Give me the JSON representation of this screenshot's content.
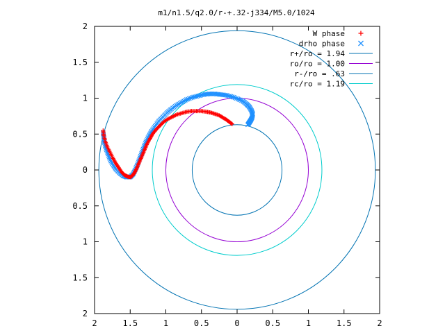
{
  "chart_data": {
    "type": "scatter",
    "title": "m1/n1.5/q2.0/r-+.32-j334/M5.0/1024",
    "xlim": [
      -2,
      2
    ],
    "ylim": [
      -2,
      2
    ],
    "xticks": [
      {
        "value": -2,
        "label": "2"
      },
      {
        "value": -1.5,
        "label": "1.5"
      },
      {
        "value": -1,
        "label": "1"
      },
      {
        "value": -0.5,
        "label": "0.5"
      },
      {
        "value": 0,
        "label": "0"
      },
      {
        "value": 0.5,
        "label": "0.5"
      },
      {
        "value": 1,
        "label": "1"
      },
      {
        "value": 1.5,
        "label": "1.5"
      },
      {
        "value": 2,
        "label": "2"
      }
    ],
    "yticks": [
      {
        "value": 2,
        "label": "2"
      },
      {
        "value": 1.5,
        "label": "1.5"
      },
      {
        "value": 1,
        "label": "1"
      },
      {
        "value": 0.5,
        "label": "0.5"
      },
      {
        "value": 0,
        "label": "0"
      },
      {
        "value": -0.5,
        "label": "0.5"
      },
      {
        "value": -1,
        "label": "1"
      },
      {
        "value": -1.5,
        "label": "1.5"
      },
      {
        "value": -2,
        "label": "2"
      }
    ],
    "legend_position": "top-right",
    "grid": false,
    "series": [
      {
        "name": "W phase",
        "kind": "points",
        "marker": "plus",
        "color": "#ff0000",
        "x": [
          -1.88,
          -1.87,
          -1.85,
          -1.82,
          -1.78,
          -1.74,
          -1.7,
          -1.66,
          -1.62,
          -1.58,
          -1.54,
          -1.5,
          -1.47,
          -1.44,
          -1.41,
          -1.38,
          -1.35,
          -1.32,
          -1.29,
          -1.26,
          -1.22,
          -1.18,
          -1.13,
          -1.08,
          -1.03,
          -0.97,
          -0.91,
          -0.85,
          -0.78,
          -0.71,
          -0.64,
          -0.57,
          -0.5,
          -0.43,
          -0.37,
          -0.31,
          -0.25,
          -0.2,
          -0.15,
          -0.11,
          -0.07
        ],
        "y": [
          0.55,
          0.48,
          0.4,
          0.32,
          0.24,
          0.16,
          0.09,
          0.03,
          -0.03,
          -0.07,
          -0.09,
          -0.1,
          -0.08,
          -0.04,
          0.02,
          0.09,
          0.16,
          0.23,
          0.3,
          0.37,
          0.44,
          0.51,
          0.57,
          0.62,
          0.67,
          0.71,
          0.74,
          0.77,
          0.79,
          0.81,
          0.82,
          0.82,
          0.82,
          0.81,
          0.8,
          0.78,
          0.76,
          0.73,
          0.7,
          0.67,
          0.64
        ]
      },
      {
        "name": "drho phase",
        "kind": "points",
        "marker": "cross",
        "color": "#1e90ff",
        "x": [
          -1.88,
          -1.87,
          -1.86,
          -1.84,
          -1.81,
          -1.78,
          -1.74,
          -1.7,
          -1.65,
          -1.6,
          -1.55,
          -1.5,
          -1.46,
          -1.43,
          -1.4,
          -1.37,
          -1.34,
          -1.31,
          -1.28,
          -1.24,
          -1.2,
          -1.15,
          -1.1,
          -1.04,
          -0.98,
          -0.92,
          -0.85,
          -0.78,
          -0.71,
          -0.63,
          -0.55,
          -0.47,
          -0.39,
          -0.31,
          -0.23,
          -0.15,
          -0.07,
          0.01,
          0.08,
          0.13,
          0.17,
          0.2,
          0.22,
          0.21,
          0.19,
          0.17,
          0.15
        ],
        "y": [
          0.52,
          0.45,
          0.38,
          0.3,
          0.22,
          0.14,
          0.07,
          0.01,
          -0.04,
          -0.08,
          -0.1,
          -0.1,
          -0.06,
          0.0,
          0.07,
          0.15,
          0.23,
          0.31,
          0.39,
          0.47,
          0.54,
          0.61,
          0.68,
          0.74,
          0.8,
          0.85,
          0.9,
          0.94,
          0.98,
          1.01,
          1.03,
          1.05,
          1.06,
          1.06,
          1.05,
          1.04,
          1.02,
          0.99,
          0.96,
          0.92,
          0.88,
          0.83,
          0.78,
          0.73,
          0.69,
          0.66,
          0.63
        ]
      },
      {
        "name": "r+/ro = 1.94",
        "kind": "circle",
        "radius": 1.94,
        "color": "#0072b2"
      },
      {
        "name": "ro/ro = 1.00",
        "kind": "circle",
        "radius": 1.0,
        "color": "#9400d3"
      },
      {
        "name": "r-/ro = .63",
        "kind": "circle",
        "radius": 0.63,
        "color": "#0072b2"
      },
      {
        "name": "rc/ro = 1.19",
        "kind": "circle",
        "radius": 1.19,
        "color": "#00cccc"
      }
    ]
  }
}
